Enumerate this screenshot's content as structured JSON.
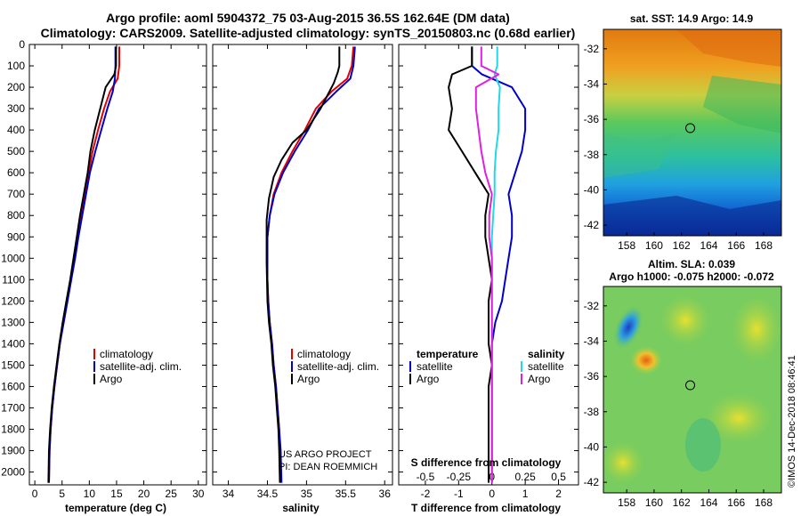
{
  "title": {
    "line1": "Argo profile: aoml 5904372_75 03-Aug-2015 36.5S 162.64E (DM data)",
    "line2": "Climatology: CARS2009. Satellite-adjusted climatology: synTS_20150803.nc (0.68d earlier)"
  },
  "colors": {
    "argo": "#000000",
    "clim": "#e00000",
    "sat": "#0000cc",
    "sal_sat": "#22d8e8",
    "sal_argo": "#e020e0"
  },
  "depth_axis": {
    "min": 0,
    "max": 2060,
    "ticks": [
      "0",
      "100",
      "200",
      "300",
      "400",
      "500",
      "600",
      "700",
      "800",
      "900",
      "1000",
      "1100",
      "1200",
      "1300",
      "1400",
      "1500",
      "1600",
      "1700",
      "1800",
      "1900",
      "2000"
    ],
    "tick_values": [
      0,
      100,
      200,
      300,
      400,
      500,
      600,
      700,
      800,
      900,
      1000,
      1100,
      1200,
      1300,
      1400,
      1500,
      1600,
      1700,
      1800,
      1900,
      2000
    ]
  },
  "chart_data": [
    {
      "type": "line",
      "id": "temperature",
      "xlabel": "temperature (deg C)",
      "xlim": [
        -1,
        31.5
      ],
      "xticks": [
        0,
        5,
        10,
        15,
        20,
        25,
        30
      ],
      "xtick_labels": [
        "0",
        "5",
        "10",
        "15",
        "20",
        "25",
        "30"
      ],
      "legend": [
        "climatology",
        "satellite-adj. clim.",
        "Argo"
      ],
      "series": [
        {
          "name": "climatology",
          "color": "clim",
          "x": [
            15.5,
            15.5,
            15.2,
            13.8,
            12.7,
            11.6,
            10.6,
            9.9,
            9.2,
            8.5,
            7.9,
            7.3,
            6.6,
            5.9,
            5.2,
            4.6,
            4.1,
            3.6,
            3.2,
            2.9,
            2.7,
            2.6
          ],
          "y": [
            10,
            100,
            160,
            220,
            300,
            400,
            500,
            600,
            700,
            800,
            900,
            1000,
            1100,
            1200,
            1300,
            1400,
            1500,
            1600,
            1700,
            1800,
            1900,
            2050
          ]
        },
        {
          "name": "satellite-adj. clim.",
          "color": "sat",
          "x": [
            14.8,
            14.8,
            14.7,
            14.3,
            13.3,
            12.2,
            11.1,
            10.1,
            9.4,
            8.7,
            8.0,
            7.4,
            6.7,
            6.0,
            5.3,
            4.6,
            4.1,
            3.6,
            3.2,
            2.9,
            2.7,
            2.6
          ],
          "y": [
            10,
            100,
            160,
            220,
            300,
            400,
            500,
            600,
            700,
            800,
            900,
            1000,
            1100,
            1200,
            1300,
            1400,
            1500,
            1600,
            1700,
            1800,
            1900,
            2050
          ]
        },
        {
          "name": "Argo",
          "color": "argo",
          "x": [
            14.9,
            14.9,
            14.6,
            13.0,
            12.0,
            11.0,
            10.2,
            9.7,
            9.0,
            8.3,
            7.7,
            7.1,
            6.5,
            5.8,
            5.1,
            4.5,
            4.0,
            3.5,
            3.1,
            2.8,
            2.6,
            2.5
          ],
          "y": [
            10,
            100,
            140,
            200,
            300,
            400,
            500,
            600,
            700,
            800,
            900,
            1000,
            1100,
            1200,
            1300,
            1400,
            1500,
            1600,
            1700,
            1800,
            1900,
            2050
          ]
        }
      ]
    },
    {
      "type": "line",
      "id": "salinity",
      "xlabel": "salinity",
      "xlim": [
        33.8,
        36.1
      ],
      "xticks": [
        34,
        34.5,
        35,
        35.5,
        36
      ],
      "xtick_labels": [
        "34",
        "34.5",
        "35",
        "35.5",
        "36"
      ],
      "legend": [
        "climatology",
        "satellite-adj. clim.",
        "Argo"
      ],
      "annotation": [
        "US ARGO PROJECT",
        "PI: DEAN ROEMMICH"
      ],
      "series": [
        {
          "name": "climatology",
          "color": "clim",
          "x": [
            35.6,
            35.58,
            35.52,
            35.32,
            35.12,
            34.98,
            34.82,
            34.68,
            34.58,
            34.53,
            34.5,
            34.5,
            34.5,
            34.51,
            34.53,
            34.56,
            34.58,
            34.61,
            34.63,
            34.65,
            34.66,
            34.67
          ],
          "y": [
            10,
            100,
            160,
            220,
            300,
            400,
            500,
            600,
            700,
            800,
            900,
            1000,
            1100,
            1200,
            1300,
            1400,
            1500,
            1600,
            1700,
            1800,
            1900,
            2050
          ]
        },
        {
          "name": "satellite-adj. clim.",
          "color": "sat",
          "x": [
            35.62,
            35.6,
            35.56,
            35.38,
            35.16,
            35.02,
            34.85,
            34.7,
            34.59,
            34.53,
            34.5,
            34.5,
            34.5,
            34.51,
            34.53,
            34.56,
            34.58,
            34.61,
            34.63,
            34.65,
            34.67,
            34.68
          ],
          "y": [
            10,
            100,
            160,
            220,
            300,
            400,
            500,
            600,
            700,
            800,
            900,
            1000,
            1100,
            1200,
            1300,
            1400,
            1500,
            1600,
            1700,
            1800,
            1900,
            2050
          ]
        },
        {
          "name": "Argo",
          "color": "argo",
          "x": [
            35.42,
            35.42,
            35.4,
            35.35,
            35.18,
            35.0,
            34.82,
            34.68,
            34.58,
            34.52,
            34.49,
            34.49,
            34.49,
            34.5,
            34.52,
            34.55,
            34.57,
            34.6,
            34.62,
            34.64,
            34.65,
            34.66
          ],
          "y": [
            10,
            100,
            130,
            180,
            300,
            400,
            460,
            540,
            620,
            720,
            820,
            920,
            1020,
            1200,
            1300,
            1400,
            1500,
            1600,
            1700,
            1800,
            1900,
            2050
          ]
        }
      ]
    },
    {
      "type": "line",
      "id": "difference",
      "xlabel": "T difference from climatology",
      "xlabel_top": "S difference from climatology",
      "xlim": [
        -2.8,
        2.6
      ],
      "xticks": [
        -2,
        -1,
        0,
        1,
        2
      ],
      "xtick_labels": [
        "-2",
        "-1",
        "0",
        "1",
        "2"
      ],
      "xticks_top": [
        -0.5,
        -0.25,
        0,
        0.25,
        0.5
      ],
      "xtick_labels_top": [
        "-0.5",
        "-0.25",
        "0",
        "0.25",
        "0.5"
      ],
      "legend_left_title": "temperature",
      "legend_left": [
        "satellite",
        "Argo"
      ],
      "legend_right_title": "salinity",
      "legend_right": [
        "satellite",
        "Argo"
      ],
      "series": [
        {
          "name": "T satellite",
          "color": "sat",
          "x": [
            -0.6,
            -0.6,
            -0.3,
            0.6,
            1.0,
            1.0,
            0.9,
            0.7,
            0.5,
            0.6,
            0.6,
            0.5,
            0.4,
            0.3,
            0.1,
            0.0,
            0.0,
            0.0,
            0.0,
            0.0,
            0.0,
            0.0
          ],
          "y": [
            10,
            100,
            140,
            200,
            300,
            400,
            500,
            600,
            700,
            800,
            900,
            1000,
            1100,
            1200,
            1300,
            1400,
            1500,
            1600,
            1700,
            1800,
            1900,
            2050
          ]
        },
        {
          "name": "T Argo",
          "color": "argo",
          "x": [
            -0.6,
            -0.6,
            -1.2,
            -1.3,
            -1.2,
            -1.3,
            -0.9,
            -0.5,
            -0.1,
            -0.2,
            -0.2,
            -0.1,
            0.0,
            -0.1,
            -0.1,
            -0.1,
            0.0,
            -0.1,
            -0.1,
            -0.1,
            -0.1,
            -0.1
          ],
          "y": [
            10,
            100,
            140,
            200,
            300,
            400,
            500,
            600,
            700,
            800,
            900,
            1000,
            1100,
            1200,
            1300,
            1400,
            1500,
            1600,
            1700,
            1800,
            1900,
            2050
          ]
        },
        {
          "name": "S satellite",
          "color": "sal_sat",
          "x": [
            0.04,
            0.04,
            0.02,
            0.06,
            0.05,
            0.05,
            0.03,
            0.02,
            0.02,
            0.01,
            0.0,
            0.0,
            0.0,
            0.0,
            0.0,
            0.0,
            0.0,
            0.0,
            0.0,
            0.0,
            0.0,
            0.0
          ],
          "y": [
            10,
            100,
            140,
            200,
            300,
            400,
            500,
            600,
            700,
            800,
            900,
            1000,
            1100,
            1200,
            1300,
            1400,
            1500,
            1600,
            1700,
            1800,
            1900,
            2050
          ]
        },
        {
          "name": "S Argo",
          "color": "sal_argo",
          "x": [
            -0.08,
            -0.08,
            0.05,
            -0.12,
            -0.12,
            -0.1,
            -0.08,
            -0.05,
            0.0,
            -0.02,
            -0.02,
            0.0,
            0.0,
            0.0,
            0.0,
            0.0,
            0.0,
            0.0,
            0.0,
            0.0,
            0.0,
            0.0
          ],
          "y": [
            10,
            100,
            140,
            200,
            300,
            400,
            500,
            600,
            700,
            800,
            900,
            1000,
            1100,
            1200,
            1300,
            1400,
            1500,
            1600,
            1700,
            1800,
            1900,
            2050
          ]
        }
      ]
    },
    {
      "type": "heatmap",
      "id": "sst_map",
      "title": "sat. SST: 14.9 Argo: 14.9",
      "xticks": [
        158,
        160,
        162,
        164,
        166,
        168
      ],
      "xtick_labels": [
        "158",
        "160",
        "162",
        "164",
        "166",
        "168"
      ],
      "yticks": [
        -32,
        -34,
        -36,
        -38,
        -40,
        -42
      ],
      "ytick_labels": [
        "-32",
        "-34",
        "-36",
        "-38",
        "-40",
        "-42"
      ],
      "xlim": [
        156.3,
        169.3
      ],
      "ylim": [
        -42.6,
        -30.9
      ],
      "marker": {
        "lon": 162.64,
        "lat": -36.5
      }
    },
    {
      "type": "heatmap",
      "id": "sla_map",
      "title": "Altim. SLA: 0.039",
      "subtitle": "Argo h1000: -0.075 h2000: -0.072",
      "xticks": [
        158,
        160,
        162,
        164,
        166,
        168
      ],
      "xtick_labels": [
        "158",
        "160",
        "162",
        "164",
        "166",
        "168"
      ],
      "yticks": [
        -32,
        -34,
        -36,
        -38,
        -40,
        -42
      ],
      "ytick_labels": [
        "-32",
        "-34",
        "-36",
        "-38",
        "-40",
        "-42"
      ],
      "xlim": [
        156.3,
        169.3
      ],
      "ylim": [
        -42.6,
        -30.9
      ],
      "marker": {
        "lon": 162.64,
        "lat": -36.5
      }
    }
  ],
  "credit": "©IMOS 14-Dec-2018 08:46:41"
}
